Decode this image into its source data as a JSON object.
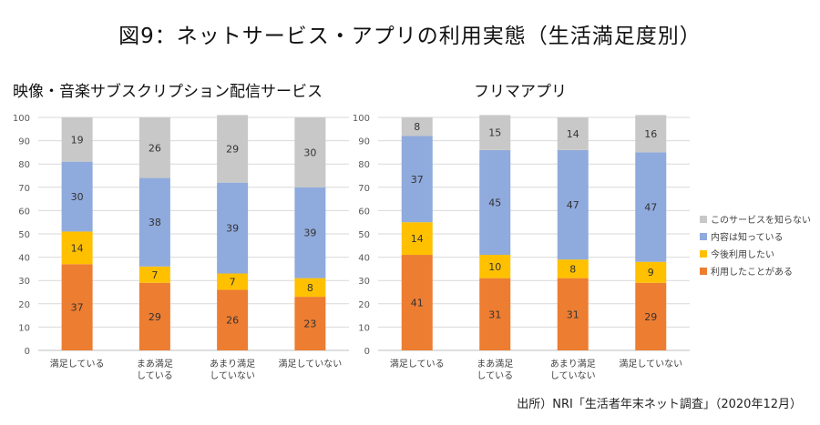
{
  "title": "図9：ネットサービス・アプリの利用実態（生活満足度別）",
  "source": "出所）NRI「生活者年末ネット調査」（2020年12月）",
  "colors": {
    "このサービスを知らない": "#c8c8c8",
    "内容は知っている": "#8faadc",
    "今後利用したい": "#ffc000",
    "利用したことがある": "#ed7d31"
  },
  "legend": [
    "このサービスを知らない",
    "内容は知っている",
    "今後利用したい",
    "利用したことがある"
  ],
  "chart_data": [
    {
      "type": "bar",
      "stacked": true,
      "title": "映像・音楽サブスクリプション配信サービス",
      "categories": [
        [
          "満足している"
        ],
        [
          "まあ満足",
          "している"
        ],
        [
          "あまり満足",
          "していない"
        ],
        [
          "満足していない"
        ]
      ],
      "ylim": [
        0,
        100
      ],
      "yticks": [
        0,
        10,
        20,
        30,
        40,
        50,
        60,
        70,
        80,
        90,
        100
      ],
      "series": [
        {
          "name": "利用したことがある",
          "values": [
            37,
            29,
            26,
            23
          ]
        },
        {
          "name": "今後利用したい",
          "values": [
            14,
            7,
            7,
            8
          ]
        },
        {
          "name": "内容は知っている",
          "values": [
            30,
            38,
            39,
            39
          ]
        },
        {
          "name": "このサービスを知らない",
          "values": [
            19,
            26,
            29,
            30
          ]
        }
      ]
    },
    {
      "type": "bar",
      "stacked": true,
      "title": "フリマアプリ",
      "categories": [
        [
          "満足している"
        ],
        [
          "まあ満足",
          "している"
        ],
        [
          "あまり満足",
          "していない"
        ],
        [
          "満足していない"
        ]
      ],
      "ylim": [
        0,
        100
      ],
      "yticks": [
        0,
        10,
        20,
        30,
        40,
        50,
        60,
        70,
        80,
        90,
        100
      ],
      "series": [
        {
          "name": "利用したことがある",
          "values": [
            41,
            31,
            31,
            29
          ]
        },
        {
          "name": "今後利用したい",
          "values": [
            14,
            10,
            8,
            9
          ]
        },
        {
          "name": "内容は知っている",
          "values": [
            37,
            45,
            47,
            47
          ]
        },
        {
          "name": "このサービスを知らない",
          "values": [
            8,
            15,
            14,
            16
          ]
        }
      ]
    }
  ]
}
